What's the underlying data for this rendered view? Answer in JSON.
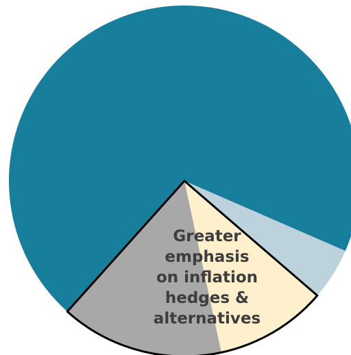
{
  "chart_data": {
    "type": "pie",
    "title": "",
    "slices": [
      {
        "value": 69.9,
        "color": "#177e9b",
        "label": ""
      },
      {
        "value": 4.8,
        "color": "#bcd2dd",
        "label": ""
      },
      {
        "value": 10.3,
        "color": "#fef0cd",
        "label": ""
      },
      {
        "value": 15.0,
        "color": "#a8a8a8",
        "label": ""
      }
    ],
    "highlight": {
      "slices": [
        2,
        3
      ],
      "stroke_color": "#000000",
      "label_lines": [
        "Greater",
        "emphasis",
        "on inflation",
        "hedges &",
        "alternatives"
      ],
      "label_color": "#3d3d3d"
    },
    "legend": "none",
    "grid": false
  }
}
